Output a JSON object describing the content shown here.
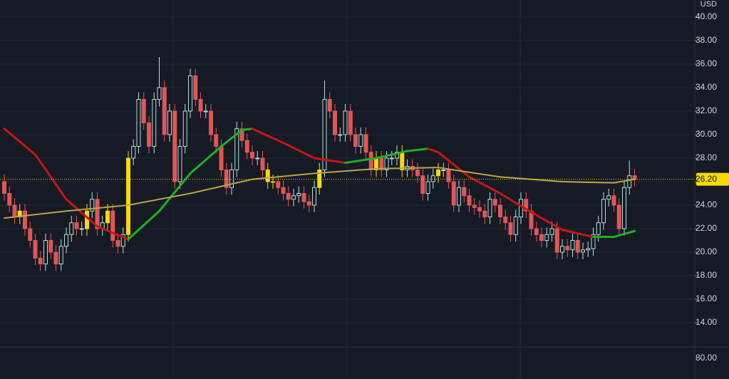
{
  "chart_data": {
    "type": "candlestick",
    "currency": "USD",
    "up_color": "#b2dfdb",
    "down_color": "#e05656",
    "highlight_color": "#f5d90a",
    "ylim": [
      11.94,
      41.45
    ],
    "yticks": [
      {
        "value": 14,
        "label": "14.00"
      },
      {
        "value": 16,
        "label": "16.00"
      },
      {
        "value": 18,
        "label": "18.00"
      },
      {
        "value": 20,
        "label": "20.00"
      },
      {
        "value": 22,
        "label": "22.00"
      },
      {
        "value": 24,
        "label": "24.00"
      },
      {
        "value": 26,
        "label": "26.00"
      },
      {
        "value": 28,
        "label": "28.00"
      },
      {
        "value": 30,
        "label": "30.00"
      },
      {
        "value": 32,
        "label": "32.00"
      },
      {
        "value": 34,
        "label": "34.00"
      },
      {
        "value": 36,
        "label": "36.00"
      },
      {
        "value": 38,
        "label": "38.00"
      },
      {
        "value": 40,
        "label": "40.00"
      }
    ],
    "last_price": {
      "value": 26.2,
      "label": "26.20",
      "color": "#f5d90a"
    },
    "lower_pane_tick": "80.00",
    "highlight": [
      3,
      16,
      20,
      24,
      51,
      52,
      61,
      72,
      77,
      84
    ],
    "ohlc": [
      [
        26,
        26.6,
        24.4,
        25
      ],
      [
        25,
        25.6,
        23.4,
        24
      ],
      [
        24,
        24.6,
        22.4,
        23
      ],
      [
        23,
        24.1,
        22.4,
        23.5
      ],
      [
        23.5,
        24.1,
        21.4,
        22
      ],
      [
        22,
        22.6,
        20.4,
        21
      ],
      [
        21,
        21.6,
        18.9,
        19.5
      ],
      [
        19.5,
        20.1,
        18.4,
        19
      ],
      [
        19,
        21.6,
        18.4,
        21
      ],
      [
        21,
        21.6,
        19.4,
        20
      ],
      [
        20,
        20.6,
        18.4,
        19
      ],
      [
        19,
        21.1,
        18.4,
        20.5
      ],
      [
        20.5,
        22.1,
        19.9,
        21.5
      ],
      [
        21.5,
        23.1,
        20.9,
        22.5
      ],
      [
        22.5,
        23.1,
        21.4,
        22
      ],
      [
        22,
        22.6,
        21.4,
        22
      ],
      [
        22,
        24.1,
        21.4,
        23.5
      ],
      [
        23.5,
        25.1,
        22.9,
        24.5
      ],
      [
        24.5,
        25.1,
        21.4,
        22
      ],
      [
        22,
        23.1,
        21.4,
        22.5
      ],
      [
        22.5,
        24.1,
        21.9,
        23.5
      ],
      [
        23.5,
        24.1,
        20.4,
        21
      ],
      [
        21,
        21.6,
        19.9,
        20.5
      ],
      [
        20.5,
        22.1,
        19.9,
        21.5
      ],
      [
        21.5,
        28.6,
        20.9,
        28
      ],
      [
        28,
        29.6,
        27.4,
        29
      ],
      [
        29,
        33.6,
        28.4,
        33
      ],
      [
        33,
        33.6,
        30.4,
        31
      ],
      [
        31,
        31.6,
        28.4,
        29
      ],
      [
        29,
        33.6,
        28.4,
        33
      ],
      [
        33,
        36.6,
        32.4,
        34
      ],
      [
        34,
        34.6,
        29.4,
        30
      ],
      [
        30,
        32.6,
        29.4,
        32
      ],
      [
        32,
        32.6,
        25.4,
        26
      ],
      [
        26,
        29.6,
        25.4,
        29
      ],
      [
        29,
        32.6,
        28.4,
        32
      ],
      [
        32,
        35.6,
        31.4,
        35
      ],
      [
        35,
        35.6,
        32.4,
        33
      ],
      [
        33,
        33.6,
        31.4,
        32
      ],
      [
        32,
        32.6,
        31.4,
        32
      ],
      [
        32,
        32.6,
        29.4,
        30
      ],
      [
        30,
        30.6,
        28.4,
        29
      ],
      [
        29,
        29.6,
        26.4,
        27
      ],
      [
        27,
        27.6,
        24.9,
        25.5
      ],
      [
        25.5,
        27.6,
        24.9,
        27
      ],
      [
        27,
        31.1,
        26.4,
        30.5
      ],
      [
        30.5,
        31.1,
        28.9,
        29.5
      ],
      [
        29.5,
        30.1,
        27.9,
        28.5
      ],
      [
        28.5,
        29.1,
        27.4,
        28
      ],
      [
        28,
        28.6,
        27.4,
        28
      ],
      [
        28,
        28.6,
        26.4,
        27
      ],
      [
        27,
        27.6,
        25.4,
        26
      ],
      [
        26,
        26.6,
        25.4,
        26
      ],
      [
        26,
        26.6,
        24.9,
        25.5
      ],
      [
        25.5,
        26.1,
        24.4,
        25
      ],
      [
        25,
        25.6,
        23.9,
        24.5
      ],
      [
        24.5,
        25.4,
        23.9,
        24.8
      ],
      [
        24.8,
        25.6,
        24.2,
        25
      ],
      [
        25,
        25.6,
        23.7,
        24.3
      ],
      [
        24.3,
        24.9,
        23.4,
        24
      ],
      [
        24,
        26.1,
        23.4,
        25.5
      ],
      [
        25.5,
        27.6,
        24.9,
        27
      ],
      [
        27,
        34.6,
        26.4,
        33
      ],
      [
        33,
        33.6,
        31.4,
        32
      ],
      [
        32,
        32.6,
        29.4,
        30
      ],
      [
        30,
        30.6,
        29.4,
        30
      ],
      [
        30,
        32.6,
        29.4,
        32
      ],
      [
        32,
        32.6,
        29.4,
        30
      ],
      [
        30,
        30.6,
        28.4,
        29
      ],
      [
        29,
        30.6,
        28.4,
        30
      ],
      [
        30,
        30.6,
        27.9,
        28.5
      ],
      [
        28.5,
        29.1,
        26.4,
        27
      ],
      [
        27,
        28.6,
        26.4,
        28
      ],
      [
        28,
        28.6,
        26.4,
        27
      ],
      [
        27,
        28.6,
        26.4,
        28
      ],
      [
        28,
        28.6,
        27.4,
        28
      ],
      [
        28,
        29.1,
        27.4,
        28.5
      ],
      [
        28.5,
        29.1,
        26.4,
        27
      ],
      [
        27,
        27.9,
        26.4,
        27.3
      ],
      [
        27.3,
        27.9,
        26.4,
        27
      ],
      [
        27,
        27.6,
        25.9,
        26.5
      ],
      [
        26.5,
        27.1,
        24.4,
        25
      ],
      [
        25,
        26.6,
        24.4,
        26
      ],
      [
        26,
        27.1,
        25.4,
        26.5
      ],
      [
        26.5,
        27.6,
        25.9,
        27
      ],
      [
        27,
        27.6,
        26.4,
        27
      ],
      [
        27,
        27.6,
        25.4,
        26
      ],
      [
        26,
        26.6,
        23.4,
        24
      ],
      [
        24,
        26.1,
        23.4,
        25.5
      ],
      [
        25.5,
        26.1,
        24.2,
        24.8
      ],
      [
        24.8,
        25.4,
        23.4,
        24
      ],
      [
        24,
        24.6,
        23.2,
        23.8
      ],
      [
        23.8,
        24.4,
        22.9,
        23.5
      ],
      [
        23.5,
        24.1,
        22.4,
        23
      ],
      [
        23,
        25.1,
        22.4,
        24.5
      ],
      [
        24.5,
        25.1,
        23.4,
        24
      ],
      [
        24,
        24.6,
        22.4,
        23
      ],
      [
        23,
        23.6,
        21.9,
        22.5
      ],
      [
        22.5,
        23.1,
        20.9,
        21.5
      ],
      [
        21.5,
        23.6,
        20.9,
        23
      ],
      [
        23,
        25.1,
        22.4,
        24.5
      ],
      [
        24.5,
        25.1,
        22.9,
        23.5
      ],
      [
        23.5,
        24.1,
        21.4,
        22
      ],
      [
        22,
        22.6,
        20.9,
        21.5
      ],
      [
        21.5,
        22.1,
        20.4,
        21
      ],
      [
        21,
        22.1,
        20.4,
        21.5
      ],
      [
        21.5,
        22.6,
        20.9,
        22
      ],
      [
        22,
        22.6,
        19.4,
        20
      ],
      [
        20,
        21.1,
        19.4,
        20.5
      ],
      [
        20.5,
        21.1,
        19.6,
        20.2
      ],
      [
        20.2,
        21.6,
        19.6,
        21
      ],
      [
        21,
        21.6,
        19.4,
        20
      ],
      [
        20,
        20.8,
        19.4,
        20.2
      ],
      [
        20.2,
        20.9,
        19.6,
        20.3
      ],
      [
        20.3,
        22.1,
        19.7,
        21.5
      ],
      [
        21.5,
        23.1,
        20.9,
        22.5
      ],
      [
        22.5,
        25.1,
        21.9,
        24.5
      ],
      [
        24.5,
        25.4,
        23.9,
        24.8
      ],
      [
        24.8,
        25.4,
        23.4,
        24
      ],
      [
        24,
        24.6,
        21.4,
        22
      ],
      [
        22,
        26.1,
        21.4,
        25.5
      ],
      [
        25.5,
        27.8,
        24.9,
        26.5
      ],
      [
        26.5,
        27.1,
        25.6,
        26.2
      ]
    ],
    "series": [
      {
        "x": [
          0,
          6,
          12,
          18,
          24,
          30,
          36,
          42,
          46,
          48,
          54,
          60,
          66,
          72,
          78,
          82,
          84,
          90,
          96,
          102,
          108,
          114,
          118,
          122
        ],
        "values": [
          30.5,
          28.3,
          24.5,
          22.2,
          21.1,
          23.5,
          26.7,
          29.0,
          30.4,
          30.5,
          29.3,
          28.0,
          27.6,
          28.0,
          28.6,
          28.8,
          28.5,
          26.4,
          25.0,
          23.4,
          21.9,
          21.3,
          21.3,
          21.8
        ],
        "rising_color": "#20b020",
        "falling_color": "#c81414"
      },
      {
        "x": [
          0,
          12,
          24,
          36,
          48,
          60,
          72,
          84,
          96,
          108,
          118,
          122
        ],
        "values": [
          22.9,
          23.5,
          24.0,
          25.0,
          26.2,
          26.7,
          27.1,
          27.2,
          26.4,
          26.0,
          25.9,
          26.2
        ],
        "rising_color": "#b9a54a",
        "falling_color": "#b9a54a"
      }
    ]
  }
}
